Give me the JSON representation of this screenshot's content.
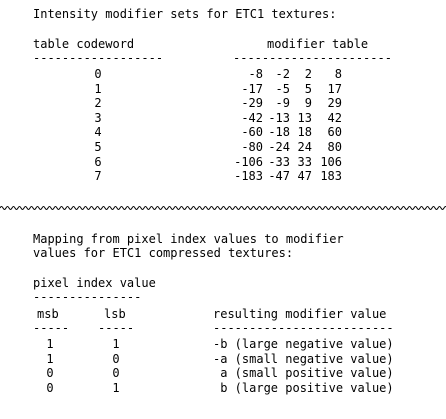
{
  "section1": {
    "title": "Intensity modifier sets for ETC1 textures:",
    "col_codeword": "table codeword",
    "col_modifier": "modifier table",
    "rule_codeword": "------------------",
    "rule_modifier": "----------------------",
    "rows": [
      {
        "codeword": "0",
        "m": [
          "-8",
          "-2",
          "2",
          "8"
        ]
      },
      {
        "codeword": "1",
        "m": [
          "-17",
          "-5",
          "5",
          "17"
        ]
      },
      {
        "codeword": "2",
        "m": [
          "-29",
          "-9",
          "9",
          "29"
        ]
      },
      {
        "codeword": "3",
        "m": [
          "-42",
          "-13",
          "13",
          "42"
        ]
      },
      {
        "codeword": "4",
        "m": [
          "-60",
          "-18",
          "18",
          "60"
        ]
      },
      {
        "codeword": "5",
        "m": [
          "-80",
          "-24",
          "24",
          "80"
        ]
      },
      {
        "codeword": "6",
        "m": [
          "-106",
          "-33",
          "33",
          "106"
        ]
      },
      {
        "codeword": "7",
        "m": [
          "-183",
          "-47",
          "47",
          "183"
        ]
      }
    ]
  },
  "section2": {
    "title_line1": "Mapping from pixel index values to modifier",
    "title_line2": "values for ETC1 compressed textures:",
    "col_pixel_index": "pixel index value",
    "rule_pixel_index": "---------------",
    "col_msb": "msb",
    "col_lsb": "lsb",
    "col_result": "resulting modifier value",
    "rule_msb": "-----",
    "rule_lsb": "-----",
    "rule_result": "-------------------------",
    "rows": [
      {
        "msb": "1",
        "lsb": "1",
        "result": "-b (large negative value)"
      },
      {
        "msb": "1",
        "lsb": "0",
        "result": "-a (small negative value)"
      },
      {
        "msb": "0",
        "lsb": "0",
        "result": " a (small positive value)"
      },
      {
        "msb": "0",
        "lsb": "1",
        "result": " b (large positive value)"
      }
    ]
  }
}
